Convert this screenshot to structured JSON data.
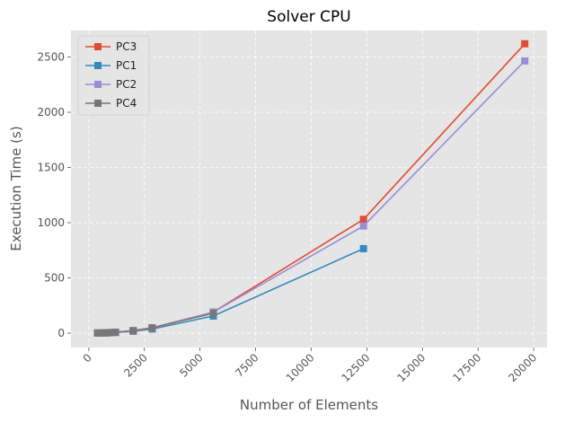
{
  "chart_data": {
    "type": "line",
    "title": "Solver CPU",
    "xlabel": "Number of Elements",
    "ylabel": "Execution Time (s)",
    "xlim": [
      -800,
      20600
    ],
    "ylim": [
      -130,
      2740
    ],
    "xticks": [
      0,
      2500,
      5000,
      7500,
      10000,
      12500,
      15000,
      17500,
      20000
    ],
    "xtick_labels": [
      "0",
      "2500",
      "5000",
      "7500",
      "10000",
      "12500",
      "15000",
      "17500",
      "20000"
    ],
    "yticks": [
      0,
      500,
      1000,
      1500,
      2000,
      2500
    ],
    "ytick_labels": [
      "0",
      "500",
      "1000",
      "1500",
      "2000",
      "2500"
    ],
    "grid": true,
    "legend_position": "top-left",
    "background": "#e5e5e5",
    "series": [
      {
        "name": "PC3",
        "color": "#e24a33",
        "x": [
          400,
          600,
          800,
          1000,
          1200,
          2000,
          2850,
          5600,
          12350,
          19600
        ],
        "y": [
          1,
          2,
          3,
          5,
          8,
          22,
          48,
          190,
          1030,
          2620
        ]
      },
      {
        "name": "PC1",
        "color": "#348abd",
        "x": [
          400,
          600,
          800,
          1000,
          1200,
          2000,
          2850,
          5600,
          12350
        ],
        "y": [
          1,
          2,
          2,
          4,
          6,
          17,
          37,
          155,
          765
        ]
      },
      {
        "name": "PC2",
        "color": "#988ed5",
        "x": [
          400,
          600,
          800,
          1000,
          1200,
          2000,
          2850,
          5600,
          12350,
          19600
        ],
        "y": [
          1,
          2,
          3,
          5,
          7,
          20,
          45,
          190,
          970,
          2465
        ]
      },
      {
        "name": "PC4",
        "color": "#777777",
        "x": [
          400,
          600,
          800,
          1000,
          1200,
          2000,
          2850,
          5600
        ],
        "y": [
          1,
          2,
          3,
          5,
          8,
          22,
          48,
          180
        ]
      }
    ]
  }
}
